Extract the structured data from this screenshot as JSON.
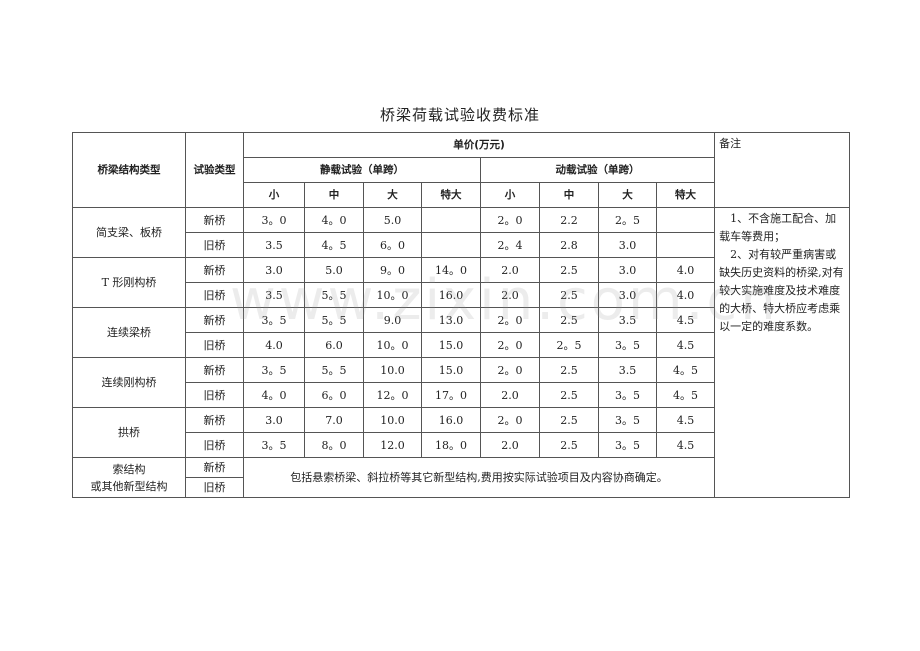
{
  "title": "桥梁荷载试验收费标准",
  "watermark": "www.zixin.com.cn",
  "header": {
    "structure": "桥梁结构类型",
    "test_type": "试验类型",
    "unit_price": "单价(万元)",
    "static": "静载试验（单跨）",
    "dynamic": "动载试验（单跨）",
    "remarks": "备注",
    "sizes": [
      "小",
      "中",
      "大",
      "特大",
      "小",
      "中",
      "大",
      "特大"
    ]
  },
  "rows": [
    {
      "structure": "简支梁、板桥",
      "new": {
        "label": "新桥",
        "values": [
          "3。0",
          "4。0",
          "5.0",
          "",
          "2。0",
          "2.2",
          "2。5",
          ""
        ]
      },
      "old": {
        "label": "旧桥",
        "values": [
          "3.5",
          "4。5",
          "6。0",
          "",
          "2。4",
          "2.8",
          "3.0",
          ""
        ]
      }
    },
    {
      "structure": "T 形刚构桥",
      "new": {
        "label": "新桥",
        "values": [
          "3.0",
          "5.0",
          "9。0",
          "14。0",
          "2.0",
          "2.5",
          "3.0",
          "4.0"
        ]
      },
      "old": {
        "label": "旧桥",
        "values": [
          "3.5",
          "5。5",
          "10。0",
          "16.0",
          "2.0",
          "2.5",
          "3.0",
          "4.0"
        ]
      }
    },
    {
      "structure": "连续梁桥",
      "new": {
        "label": "新桥",
        "values": [
          "3。5",
          "5。5",
          "9.0",
          "13.0",
          "2。0",
          "2.5",
          "3.5",
          "4.5"
        ]
      },
      "old": {
        "label": "旧桥",
        "values": [
          "4.0",
          "6.0",
          "10。0",
          "15.0",
          "2。0",
          "2。5",
          "3。5",
          "4.5"
        ]
      }
    },
    {
      "structure": "连续刚构桥",
      "new": {
        "label": "新桥",
        "values": [
          "3。5",
          "5。5",
          "10.0",
          "15.0",
          "2。0",
          "2.5",
          "3.5",
          "4。5"
        ]
      },
      "old": {
        "label": "旧桥",
        "values": [
          "4。0",
          "6。0",
          "12。0",
          "17。0",
          "2.0",
          "2.5",
          "3。5",
          "4。5"
        ]
      }
    },
    {
      "structure": "拱桥",
      "new": {
        "label": "新桥",
        "values": [
          "3.0",
          "7.0",
          "10.0",
          "16.0",
          "2。0",
          "2.5",
          "3。5",
          "4.5"
        ]
      },
      "old": {
        "label": "旧桥",
        "values": [
          "3。5",
          "8。0",
          "12.0",
          "18。0",
          "2.0",
          "2.5",
          "3。5",
          "4.5"
        ]
      }
    }
  ],
  "cable": {
    "structure_line1": "索结构",
    "structure_line2": "或其他新型结构",
    "new": "新桥",
    "old": "旧桥",
    "note": "包括悬索桥梁、斜拉桥等其它新型结构,费用按实际试验项目及内容协商确定。"
  },
  "remarks": [
    "1、不含施工配合、加载车等费用；",
    "2、对有较严重病害或缺失历史资料的桥梁,对有较大实施难度及技术难度的大桥、特大桥应考虑乘以一定的难度系数。"
  ]
}
